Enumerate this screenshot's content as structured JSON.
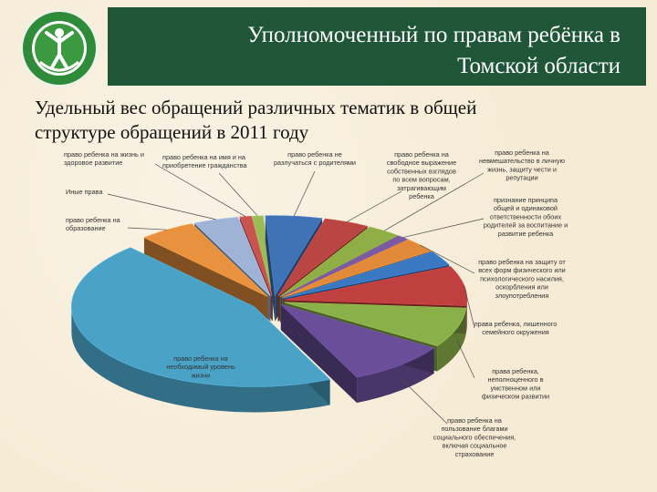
{
  "header": {
    "title_line1": "Уполномоченный по правам ребёнка в",
    "title_line2": "Томской области"
  },
  "subtitle": {
    "line1": "Удельный вес обращений различных тематик в общей",
    "line2": "структуре обращений в 2011 году"
  },
  "chart_data": {
    "type": "pie",
    "title": "Удельный вес обращений различных тематик в общей структуре обращений в 2011 году",
    "style": "3d-exploded",
    "slices": [
      {
        "label": "право ребенка не разлучаться с родителями",
        "value": 5,
        "color": "#3f73b6",
        "lines": [
          "право ребенка не",
          "разлучаться с родителями"
        ]
      },
      {
        "label": "право ребенка на свободное выражение собственных взглядов по всем вопросам, затрагивающим ребенка",
        "value": 4,
        "color": "#b94643",
        "lines": [
          "право ребенка на",
          "свободное выражение",
          "собственных взглядов",
          "по всем вопросам,",
          "затрагивающим",
          "ребенка"
        ]
      },
      {
        "label": "право ребенка на неприкосновенность в личную жизнь, защиту чести и репутации",
        "value": 3,
        "color": "#8fae46",
        "lines": [
          "право ребенка на",
          "невмешательство в личную",
          "жизнь, защиту чести и",
          "репутации"
        ]
      },
      {
        "label": "признание принципа общей и одинаковой ответственности обоих родителей за воспитание и развитие ребенка",
        "value": 1,
        "color": "#7b5aa3",
        "lines": [
          "признание принципа",
          "общей и одинаковой",
          "ответственности обоих",
          "родителей за воспитание и",
          "развитие ребенка"
        ]
      },
      {
        "label": "право ребенка на защиту от всех форм физического или психологического насилия, оскорбления или злоупотребления",
        "value": 3,
        "color": "#e38a3a",
        "lines": [
          "право ребенка на защиту от",
          "всех форм физического или",
          "психологического насилия,",
          "оскорбления или",
          "злоупотребления"
        ]
      },
      {
        "label": "право ребенка на защиту",
        "value": 3,
        "color": "#3a78c2",
        "lines": []
      },
      {
        "label": "права ребенка, лишенного семейного окружения",
        "value": 8,
        "color": "#c0403f",
        "lines": [
          "права ребенка, лишенного",
          "семейного окружения"
        ]
      },
      {
        "label": "права ребенка, неполноценного в умственном или физическом развитии",
        "value": 8,
        "color": "#8ab04a",
        "lines": [
          "права ребенка,",
          "неполноценного в",
          "умственном или",
          "физическом развитии"
        ]
      },
      {
        "label": "право ребенка на пользование благами социального обеспечения, включая социальное страхование",
        "value": 9,
        "color": "#6a4e9a",
        "lines": [
          "право ребенка на",
          "пользование благами",
          "социального обеспечения,",
          "включая социальное",
          "страхование"
        ]
      },
      {
        "label": "право ребенка на необходимый уровень жизни",
        "value": 45,
        "color": "#4aa3c7",
        "lines": [
          "право ребенка на",
          "необходимый уровень",
          "жизни"
        ]
      },
      {
        "label": "право ребенка на образование",
        "value": 5,
        "color": "#e8913e",
        "lines": [
          "право ребенка на",
          "образование"
        ]
      },
      {
        "label": "Иные права",
        "value": 4,
        "color": "#9fb3d6",
        "lines": [
          "Иные права"
        ]
      },
      {
        "label": "право ребенка на жизнь и здоровое развитие",
        "value": 1,
        "color": "#c9534f",
        "lines": [
          "право ребенка на жизнь и",
          "здоровое развитие"
        ]
      },
      {
        "label": "право ребенка на имя и на приобретение гражданства",
        "value": 1,
        "color": "#9bbb59",
        "lines": [
          "право ребенка на имя и на",
          "приобретение гражданства"
        ]
      }
    ]
  }
}
